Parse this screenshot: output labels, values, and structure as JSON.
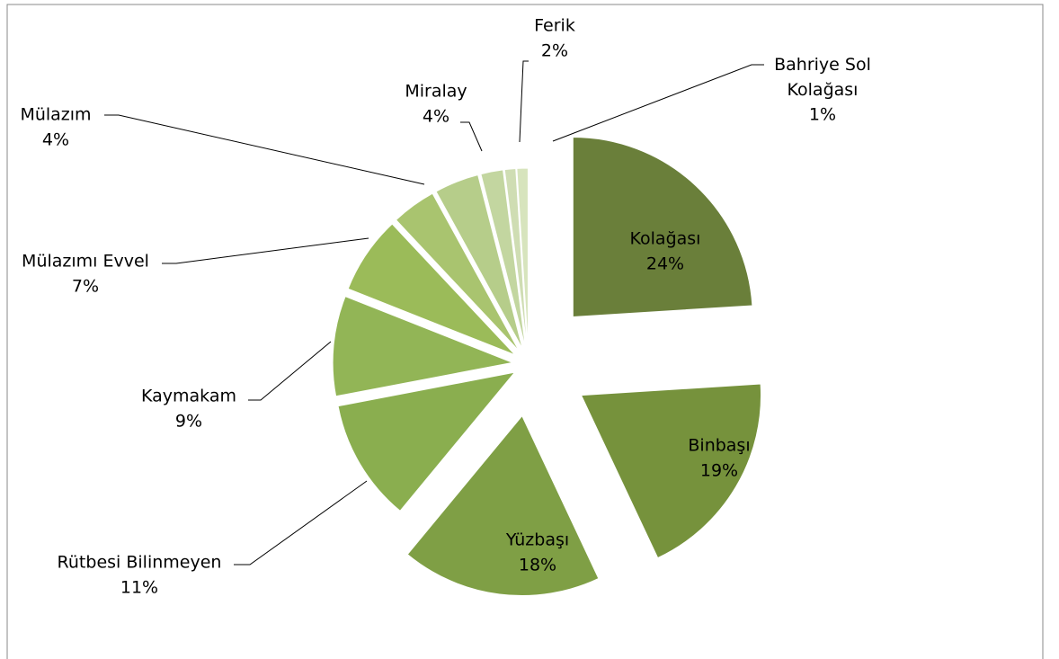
{
  "chart_data": {
    "type": "pie",
    "categories": [
      "Kolağası",
      "Binbaşı",
      "Yüzbaşı",
      "Rütbesi Bilinmeyen",
      "Kaymakam",
      "Mülazımı Evvel",
      "Mülazım",
      "Miralay",
      "Ferik",
      null,
      "Bahriye Sol Kolağası"
    ],
    "values": [
      24,
      19,
      18,
      11,
      9,
      7,
      4,
      4,
      2,
      1,
      1
    ],
    "value_labels": [
      "24%",
      "19%",
      "18%",
      "11%",
      "9%",
      "7%",
      "4%",
      "4%",
      "2%",
      null,
      "1%"
    ],
    "colors": [
      "#6a7f3a",
      "#76923c",
      "#7f9f45",
      "#8aae4f",
      "#92b556",
      "#9bbb59",
      "#a9c46f",
      "#b6cd8a",
      "#c3d6a0",
      "#cfddb3",
      "#d7e4bd"
    ]
  }
}
